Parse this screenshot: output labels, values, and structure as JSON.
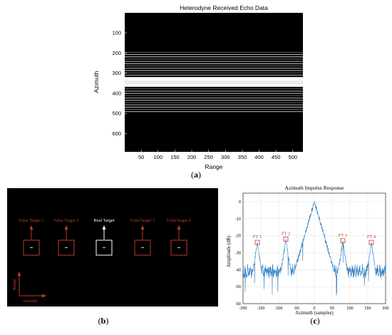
{
  "captions": {
    "a": "a",
    "b": "b",
    "c": "c"
  },
  "panel_a": {
    "title": "Heterodyne Received Echo Data",
    "xlabel": "Range",
    "ylabel": "Azimuth",
    "xticks": [
      "50",
      "100",
      "150",
      "200",
      "250",
      "300",
      "350",
      "400",
      "450",
      "500"
    ],
    "yticks": [
      "100",
      "200",
      "300",
      "400",
      "500",
      "600"
    ]
  },
  "panel_b": {
    "targets": [
      "False Target 1",
      "False Target 2",
      "Real Target",
      "FalseTarget 3",
      "FalseTarget 4"
    ],
    "axis_range": "Range",
    "axis_azimuth": "Azimuth",
    "colors": {
      "false": "#c0392b",
      "real": "#ffffff",
      "bg": "#000000"
    }
  },
  "chart_data": [
    {
      "type": "heatmap",
      "title": "Heterodyne Received Echo Data",
      "xlabel": "Range",
      "ylabel": "Azimuth",
      "xlim": [
        1,
        530
      ],
      "ylim": [
        1,
        690
      ],
      "bright_bands": [
        {
          "from": 195,
          "to": 320,
          "intensity": "medium"
        },
        {
          "from": 320,
          "to": 365,
          "intensity": "high"
        },
        {
          "from": 365,
          "to": 490,
          "intensity": "medium"
        }
      ]
    },
    {
      "type": "line",
      "title": "Azimuth Impulse Response",
      "xlabel": "Azimuth (samples)",
      "ylabel": "Amplitude (dB)",
      "xlim": [
        -200,
        200
      ],
      "ylim": [
        -60,
        5
      ],
      "xticks": [
        "-200",
        "-150",
        "-100",
        "-50",
        "0",
        "50",
        "100",
        "150",
        "200"
      ],
      "yticks": [
        "0",
        "-10",
        "-20",
        "-30",
        "-40",
        "-50",
        "-60"
      ],
      "peaks": [
        {
          "x": 0,
          "y": 0,
          "label": ""
        },
        {
          "x": -160,
          "y": -24,
          "label": "FT 1"
        },
        {
          "x": -80,
          "y": -22,
          "label": "FT 2"
        },
        {
          "x": 80,
          "y": -23,
          "label": "FT 3"
        },
        {
          "x": 160,
          "y": -24,
          "label": "FT 4"
        }
      ],
      "noise_floor": -41,
      "color": "#2e7fc4"
    }
  ]
}
